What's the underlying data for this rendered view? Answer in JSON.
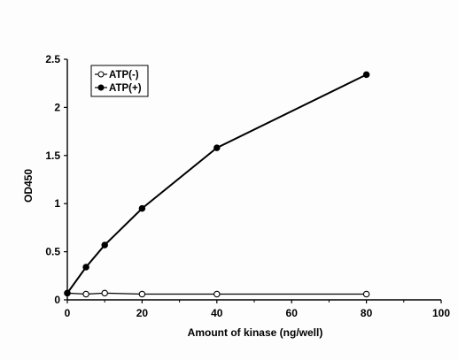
{
  "chart_data": {
    "type": "line",
    "title": "",
    "xlabel": "Amount of kinase (ng/well)",
    "ylabel": "OD450",
    "xlim": [
      0,
      100
    ],
    "ylim": [
      0,
      2.5
    ],
    "x_ticks": [
      "0",
      "20",
      "40",
      "60",
      "80",
      "100"
    ],
    "y_ticks": [
      "0",
      "0.5",
      "1",
      "1.5",
      "2",
      "2.5"
    ],
    "grid": false,
    "legend_position": "top-left",
    "series": [
      {
        "name": "ATP(-)",
        "marker": "open-circle",
        "color": "#000000",
        "x": [
          0,
          5,
          10,
          20,
          40,
          80
        ],
        "y": [
          0.07,
          0.06,
          0.07,
          0.06,
          0.06,
          0.06
        ]
      },
      {
        "name": "ATP(+)",
        "marker": "filled-circle",
        "color": "#000000",
        "x": [
          0,
          5,
          10,
          20,
          40,
          80
        ],
        "y": [
          0.07,
          0.34,
          0.57,
          0.95,
          1.58,
          2.34
        ]
      }
    ]
  }
}
